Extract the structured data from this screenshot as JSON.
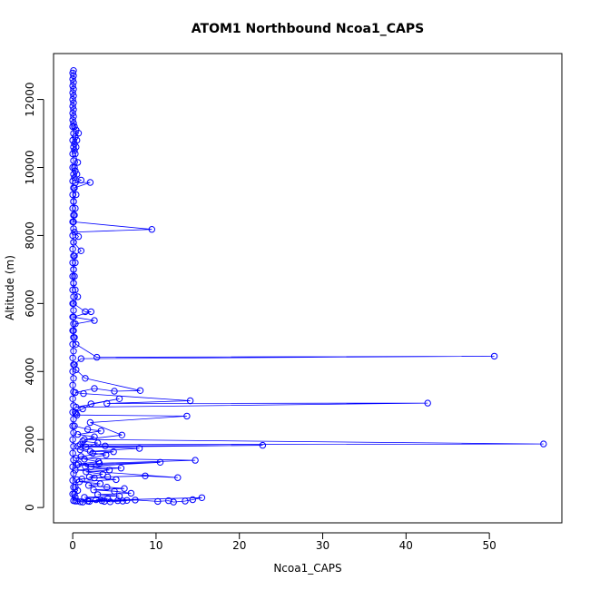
{
  "chart_data": {
    "type": "line",
    "title": "ATOM1 Northbound Ncoa1_CAPS",
    "xlabel": "Ncoa1_CAPS",
    "ylabel": "Altitude (m)",
    "xlim": [
      -2.3,
      58.7
    ],
    "ylim": [
      -450,
      13350
    ],
    "xticks": [
      0,
      10,
      20,
      30,
      40,
      50
    ],
    "yticks": [
      0,
      2000,
      4000,
      6000,
      8000,
      10000,
      12000
    ],
    "grid": false,
    "legend": "none",
    "markers": "open-circle",
    "colors": {
      "series": "#0000ff",
      "axis": "#000000"
    },
    "series": [
      {
        "points": [
          [
            0.1,
            12850
          ],
          [
            0.0,
            12780
          ],
          [
            0.1,
            12700
          ],
          [
            0.0,
            12600
          ],
          [
            0.1,
            12500
          ],
          [
            0.0,
            12400
          ],
          [
            0.1,
            12300
          ],
          [
            0.0,
            12200
          ],
          [
            0.1,
            12100
          ],
          [
            0.0,
            12000
          ],
          [
            0.1,
            11900
          ],
          [
            0.0,
            11800
          ],
          [
            0.1,
            11700
          ],
          [
            0.0,
            11600
          ],
          [
            0.1,
            11500
          ],
          [
            0.0,
            11400
          ],
          [
            0.1,
            11300
          ],
          [
            0.2,
            11200
          ],
          [
            0.4,
            11100
          ],
          [
            0.7,
            11010
          ],
          [
            0.3,
            10900
          ],
          [
            0.5,
            10800
          ],
          [
            0.2,
            10700
          ],
          [
            0.4,
            10600
          ],
          [
            0.2,
            10500
          ],
          [
            0.3,
            10400
          ],
          [
            0.6,
            10150
          ],
          [
            0.2,
            10000
          ],
          [
            0.3,
            9900
          ],
          [
            0.5,
            9800
          ],
          [
            0.2,
            9700
          ],
          [
            1.0,
            9630
          ],
          [
            0.3,
            9550
          ],
          [
            2.1,
            9560
          ],
          [
            0.2,
            9400
          ],
          [
            0.4,
            9200
          ],
          [
            0.1,
            9000
          ],
          [
            0.3,
            8800
          ],
          [
            0.2,
            8600
          ],
          [
            0.1,
            8400
          ],
          [
            9.5,
            8180
          ],
          [
            0.2,
            8100
          ],
          [
            0.7,
            7970
          ],
          [
            0.1,
            7800
          ],
          [
            1.0,
            7550
          ],
          [
            0.2,
            7400
          ],
          [
            0.3,
            7200
          ],
          [
            0.1,
            7000
          ],
          [
            0.2,
            6800
          ],
          [
            0.1,
            6600
          ],
          [
            0.3,
            6400
          ],
          [
            0.6,
            6200
          ],
          [
            0.1,
            6000
          ],
          [
            1.5,
            5760
          ],
          [
            2.2,
            5760
          ],
          [
            0.1,
            5600
          ],
          [
            2.6,
            5500
          ],
          [
            0.3,
            5400
          ],
          [
            0.1,
            5200
          ],
          [
            0.2,
            5000
          ],
          [
            0.4,
            4800
          ],
          [
            2.9,
            4420
          ],
          [
            50.6,
            4450
          ],
          [
            1.0,
            4380
          ],
          [
            0.2,
            4200
          ],
          [
            0.4,
            4050
          ],
          [
            1.5,
            3800
          ],
          [
            8.1,
            3440
          ],
          [
            5.0,
            3420
          ],
          [
            2.6,
            3500
          ],
          [
            0.3,
            3380
          ],
          [
            1.3,
            3350
          ],
          [
            14.1,
            3140
          ],
          [
            4.1,
            3060
          ],
          [
            42.6,
            3070
          ],
          [
            0.4,
            2950
          ],
          [
            5.6,
            3200
          ],
          [
            2.2,
            3050
          ],
          [
            1.2,
            2900
          ],
          [
            0.3,
            2800
          ],
          [
            0.4,
            2760
          ],
          [
            0.5,
            2720
          ],
          [
            13.7,
            2690
          ],
          [
            2.1,
            2500
          ],
          [
            5.9,
            2130
          ],
          [
            1.4,
            2000
          ],
          [
            56.5,
            1870
          ],
          [
            0.9,
            1850
          ],
          [
            1.6,
            1780
          ],
          [
            22.8,
            1830
          ],
          [
            3.9,
            1810
          ],
          [
            0.6,
            1800
          ],
          [
            8.0,
            1740
          ],
          [
            2.1,
            1650
          ],
          [
            4.9,
            1640
          ],
          [
            1.0,
            1500
          ],
          [
            0.4,
            1450
          ],
          [
            14.7,
            1390
          ],
          [
            3.2,
            1300
          ],
          [
            0.5,
            1250
          ],
          [
            10.5,
            1330
          ],
          [
            1.5,
            1210
          ],
          [
            5.8,
            1160
          ],
          [
            0.3,
            1100
          ],
          [
            12.6,
            880
          ],
          [
            8.7,
            930
          ],
          [
            4.2,
            900
          ],
          [
            2.6,
            870
          ],
          [
            1.1,
            840
          ],
          [
            0.5,
            820
          ],
          [
            0.3,
            600
          ],
          [
            0.6,
            500
          ],
          [
            0.2,
            400
          ],
          [
            0.3,
            300
          ],
          [
            0.5,
            190
          ],
          [
            1.2,
            160
          ],
          [
            2.0,
            180
          ],
          [
            3.5,
            200
          ],
          [
            4.5,
            170
          ],
          [
            6.0,
            190
          ],
          [
            7.5,
            220
          ],
          [
            10.2,
            180
          ],
          [
            11.5,
            200
          ],
          [
            12.1,
            160
          ],
          [
            13.5,
            190
          ],
          [
            14.4,
            230
          ],
          [
            15.5,
            290
          ],
          [
            0.3,
            190
          ]
        ]
      },
      {
        "points": [
          [
            0.0,
            11200
          ],
          [
            0.1,
            11000
          ],
          [
            0.0,
            10800
          ],
          [
            0.1,
            10600
          ],
          [
            0.0,
            10400
          ],
          [
            0.1,
            10200
          ],
          [
            0.0,
            10000
          ],
          [
            0.1,
            9800
          ],
          [
            0.0,
            9600
          ],
          [
            0.1,
            9400
          ],
          [
            0.0,
            9200
          ],
          [
            0.1,
            9000
          ],
          [
            0.0,
            8800
          ],
          [
            0.1,
            8600
          ],
          [
            0.0,
            8400
          ],
          [
            0.1,
            8200
          ],
          [
            0.0,
            8000
          ],
          [
            0.1,
            7800
          ],
          [
            0.0,
            7600
          ],
          [
            0.1,
            7400
          ],
          [
            0.0,
            7200
          ],
          [
            0.1,
            7000
          ],
          [
            0.0,
            6800
          ],
          [
            0.1,
            6600
          ],
          [
            0.0,
            6400
          ],
          [
            0.1,
            6200
          ],
          [
            0.0,
            6000
          ],
          [
            0.1,
            5800
          ],
          [
            0.0,
            5600
          ],
          [
            0.1,
            5400
          ],
          [
            0.0,
            5200
          ],
          [
            0.1,
            5000
          ],
          [
            0.0,
            4800
          ],
          [
            0.1,
            4600
          ],
          [
            0.0,
            4400
          ],
          [
            0.1,
            4200
          ],
          [
            0.0,
            4000
          ],
          [
            0.1,
            3800
          ],
          [
            0.0,
            3600
          ],
          [
            0.1,
            3400
          ],
          [
            0.0,
            3200
          ],
          [
            0.1,
            3000
          ],
          [
            0.0,
            2800
          ],
          [
            0.1,
            2600
          ],
          [
            0.0,
            2400
          ],
          [
            0.1,
            2200
          ],
          [
            0.0,
            2000
          ],
          [
            0.1,
            1800
          ],
          [
            0.0,
            1600
          ],
          [
            0.1,
            1400
          ],
          [
            0.0,
            1200
          ],
          [
            0.1,
            1000
          ],
          [
            0.0,
            800
          ],
          [
            0.1,
            600
          ],
          [
            0.0,
            400
          ],
          [
            0.1,
            200
          ]
        ]
      },
      {
        "points": [
          [
            0.2,
            2400
          ],
          [
            1.8,
            2300
          ],
          [
            3.4,
            2250
          ],
          [
            0.6,
            2150
          ],
          [
            2.6,
            2080
          ],
          [
            1.2,
            1950
          ],
          [
            3.0,
            1900
          ],
          [
            0.9,
            1700
          ],
          [
            2.4,
            1600
          ],
          [
            4.0,
            1550
          ],
          [
            1.4,
            1420
          ],
          [
            3.1,
            1350
          ],
          [
            0.7,
            1280
          ],
          [
            2.2,
            1200
          ],
          [
            4.4,
            1100
          ],
          [
            1.6,
            1050
          ],
          [
            3.6,
            980
          ],
          [
            2.0,
            900
          ],
          [
            5.2,
            820
          ],
          [
            0.8,
            760
          ],
          [
            3.3,
            700
          ],
          [
            1.9,
            650
          ],
          [
            4.1,
            600
          ],
          [
            6.2,
            560
          ],
          [
            2.5,
            520
          ],
          [
            5.0,
            480
          ],
          [
            7.0,
            420
          ],
          [
            3.0,
            380
          ],
          [
            5.6,
            340
          ],
          [
            1.4,
            300
          ],
          [
            4.2,
            260
          ],
          [
            2.8,
            230
          ],
          [
            6.5,
            210
          ],
          [
            5.4,
            200
          ],
          [
            1.8,
            190
          ],
          [
            3.8,
            180
          ],
          [
            0.9,
            170
          ]
        ]
      }
    ]
  }
}
